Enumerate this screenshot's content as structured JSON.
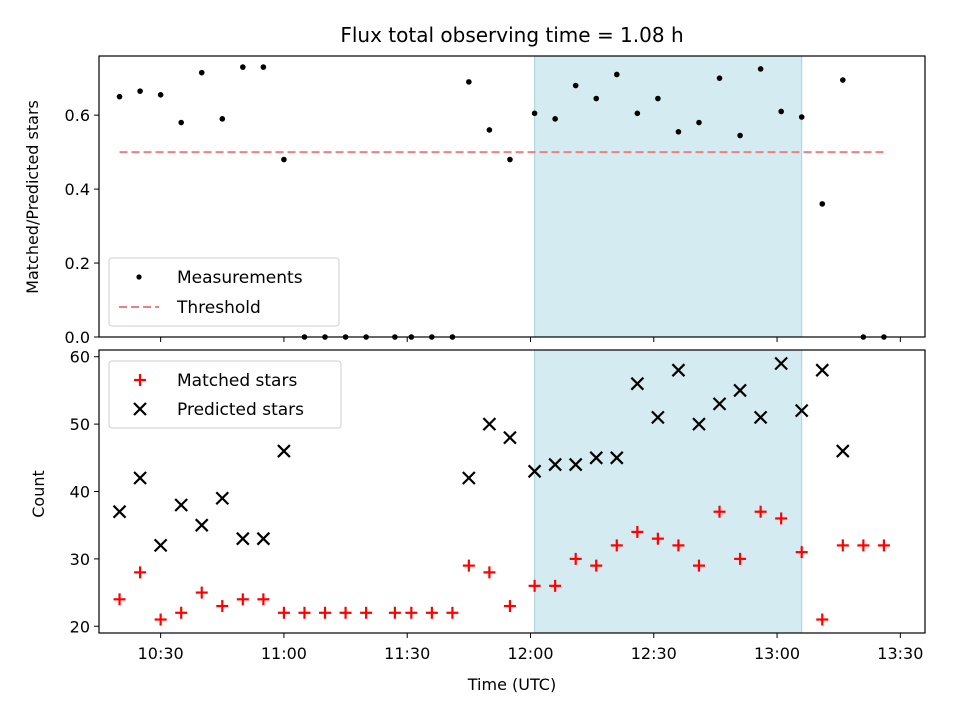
{
  "chart_data": [
    {
      "type": "scatter",
      "title": "Flux total observing time = 1.08 h",
      "xlabel": "",
      "ylabel": "Matched/Predicted stars",
      "ylim": [
        0,
        0.76
      ],
      "yticks": [
        "0.0",
        "0.2",
        "0.4",
        "0.6"
      ],
      "legend_position": "lower-left",
      "shaded_interval": {
        "x_start": "12:01",
        "x_end": "13:06",
        "color": "#d3ebf1"
      },
      "series": [
        {
          "name": "Measurements",
          "marker": "dot",
          "color": "#000000",
          "points": [
            {
              "x": "10:20",
              "y": 0.65
            },
            {
              "x": "10:25",
              "y": 0.665
            },
            {
              "x": "10:30",
              "y": 0.655
            },
            {
              "x": "10:35",
              "y": 0.58
            },
            {
              "x": "10:40",
              "y": 0.715
            },
            {
              "x": "10:45",
              "y": 0.59
            },
            {
              "x": "10:50",
              "y": 0.73
            },
            {
              "x": "10:55",
              "y": 0.73
            },
            {
              "x": "11:00",
              "y": 0.48
            },
            {
              "x": "11:05",
              "y": 0.0
            },
            {
              "x": "11:10",
              "y": 0.0
            },
            {
              "x": "11:15",
              "y": 0.0
            },
            {
              "x": "11:20",
              "y": 0.0
            },
            {
              "x": "11:27",
              "y": 0.0
            },
            {
              "x": "11:31",
              "y": 0.0
            },
            {
              "x": "11:36",
              "y": 0.0
            },
            {
              "x": "11:41",
              "y": 0.0
            },
            {
              "x": "11:45",
              "y": 0.69
            },
            {
              "x": "11:50",
              "y": 0.56
            },
            {
              "x": "11:55",
              "y": 0.48
            },
            {
              "x": "12:01",
              "y": 0.605
            },
            {
              "x": "12:06",
              "y": 0.59
            },
            {
              "x": "12:11",
              "y": 0.68
            },
            {
              "x": "12:16",
              "y": 0.645
            },
            {
              "x": "12:21",
              "y": 0.71
            },
            {
              "x": "12:26",
              "y": 0.605
            },
            {
              "x": "12:31",
              "y": 0.645
            },
            {
              "x": "12:36",
              "y": 0.555
            },
            {
              "x": "12:41",
              "y": 0.58
            },
            {
              "x": "12:46",
              "y": 0.7
            },
            {
              "x": "12:51",
              "y": 0.545
            },
            {
              "x": "12:56",
              "y": 0.725
            },
            {
              "x": "13:01",
              "y": 0.61
            },
            {
              "x": "13:06",
              "y": 0.595
            },
            {
              "x": "13:11",
              "y": 0.36
            },
            {
              "x": "13:16",
              "y": 0.695
            },
            {
              "x": "13:21",
              "y": 0.0
            },
            {
              "x": "13:26",
              "y": 0.0
            }
          ]
        },
        {
          "name": "Threshold",
          "marker": "dashed-line",
          "color": "#f08080",
          "points": [
            {
              "x": "10:20",
              "y": 0.5
            },
            {
              "x": "13:26",
              "y": 0.5
            }
          ]
        }
      ]
    },
    {
      "type": "scatter",
      "title": "",
      "xlabel": "Time (UTC)",
      "ylabel": "Count",
      "ylim": [
        19,
        61
      ],
      "yticks": [
        "20",
        "30",
        "40",
        "50",
        "60"
      ],
      "xlim": [
        "10:15",
        "13:36"
      ],
      "xticks": [
        "10:30",
        "11:00",
        "11:30",
        "12:00",
        "12:30",
        "13:00",
        "13:30"
      ],
      "legend_position": "upper-left",
      "shaded_interval": {
        "x_start": "12:01",
        "x_end": "13:06",
        "color": "#d3ebf1"
      },
      "series": [
        {
          "name": "Matched stars",
          "marker": "plus",
          "color": "#ff0000",
          "points": [
            {
              "x": "10:20",
              "y": 24
            },
            {
              "x": "10:25",
              "y": 28
            },
            {
              "x": "10:30",
              "y": 21
            },
            {
              "x": "10:35",
              "y": 22
            },
            {
              "x": "10:40",
              "y": 25
            },
            {
              "x": "10:45",
              "y": 23
            },
            {
              "x": "10:50",
              "y": 24
            },
            {
              "x": "10:55",
              "y": 24
            },
            {
              "x": "11:00",
              "y": 22
            },
            {
              "x": "11:05",
              "y": 22
            },
            {
              "x": "11:10",
              "y": 22
            },
            {
              "x": "11:15",
              "y": 22
            },
            {
              "x": "11:20",
              "y": 22
            },
            {
              "x": "11:27",
              "y": 22
            },
            {
              "x": "11:31",
              "y": 22
            },
            {
              "x": "11:36",
              "y": 22
            },
            {
              "x": "11:41",
              "y": 22
            },
            {
              "x": "11:45",
              "y": 29
            },
            {
              "x": "11:50",
              "y": 28
            },
            {
              "x": "11:55",
              "y": 23
            },
            {
              "x": "12:01",
              "y": 26
            },
            {
              "x": "12:06",
              "y": 26
            },
            {
              "x": "12:11",
              "y": 30
            },
            {
              "x": "12:16",
              "y": 29
            },
            {
              "x": "12:21",
              "y": 32
            },
            {
              "x": "12:26",
              "y": 34
            },
            {
              "x": "12:31",
              "y": 33
            },
            {
              "x": "12:36",
              "y": 32
            },
            {
              "x": "12:41",
              "y": 29
            },
            {
              "x": "12:46",
              "y": 37
            },
            {
              "x": "12:51",
              "y": 30
            },
            {
              "x": "12:56",
              "y": 37
            },
            {
              "x": "13:01",
              "y": 36
            },
            {
              "x": "13:06",
              "y": 31
            },
            {
              "x": "13:11",
              "y": 21
            },
            {
              "x": "13:16",
              "y": 32
            },
            {
              "x": "13:21",
              "y": 32
            },
            {
              "x": "13:26",
              "y": 32
            }
          ]
        },
        {
          "name": "Predicted stars",
          "marker": "x",
          "color": "#000000",
          "points": [
            {
              "x": "10:20",
              "y": 37
            },
            {
              "x": "10:25",
              "y": 42
            },
            {
              "x": "10:30",
              "y": 32
            },
            {
              "x": "10:35",
              "y": 38
            },
            {
              "x": "10:40",
              "y": 35
            },
            {
              "x": "10:45",
              "y": 39
            },
            {
              "x": "10:50",
              "y": 33
            },
            {
              "x": "10:55",
              "y": 33
            },
            {
              "x": "11:00",
              "y": 46
            },
            {
              "x": "11:45",
              "y": 42
            },
            {
              "x": "11:50",
              "y": 50
            },
            {
              "x": "11:55",
              "y": 48
            },
            {
              "x": "12:01",
              "y": 43
            },
            {
              "x": "12:06",
              "y": 44
            },
            {
              "x": "12:11",
              "y": 44
            },
            {
              "x": "12:16",
              "y": 45
            },
            {
              "x": "12:21",
              "y": 45
            },
            {
              "x": "12:26",
              "y": 56
            },
            {
              "x": "12:31",
              "y": 51
            },
            {
              "x": "12:36",
              "y": 58
            },
            {
              "x": "12:41",
              "y": 50
            },
            {
              "x": "12:46",
              "y": 53
            },
            {
              "x": "12:51",
              "y": 55
            },
            {
              "x": "12:56",
              "y": 51
            },
            {
              "x": "13:01",
              "y": 59
            },
            {
              "x": "13:06",
              "y": 52
            },
            {
              "x": "13:11",
              "y": 58
            },
            {
              "x": "13:16",
              "y": 46
            }
          ]
        }
      ]
    }
  ]
}
